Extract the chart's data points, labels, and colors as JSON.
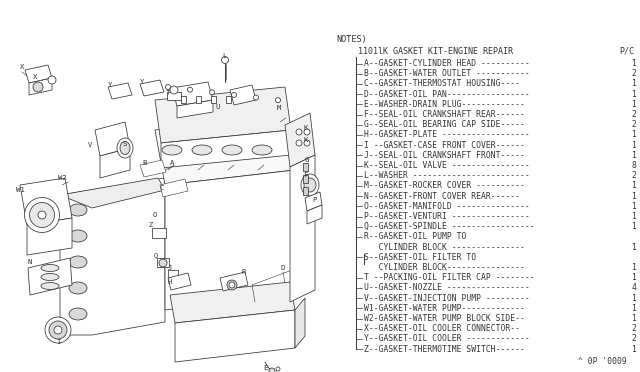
{
  "bg_color": "#ffffff",
  "notes_label": "NOTES)",
  "title_line": "1101lK GASKET KIT-ENGINE REPAIR",
  "pc_label": "P/C",
  "parts": [
    {
      "text": "A--GASKET-CYLINDER HEAD ----------",
      "qty": "1",
      "indent": false
    },
    {
      "text": "B--GASKET-WATER OUTLET -----------",
      "qty": "2",
      "indent": false
    },
    {
      "text": "C--GASKET-THERMOSTAT HOUSING----",
      "qty": "1",
      "indent": false
    },
    {
      "text": "D--GASKET-OIL PAN-----------------",
      "qty": "1",
      "indent": false
    },
    {
      "text": "E--WASHER-DRAIN PLUG-------------",
      "qty": "1",
      "indent": false
    },
    {
      "text": "F--SEAL-OIL CRANKSHAFT REAR------",
      "qty": "2",
      "indent": false
    },
    {
      "text": "G--SEAL-OIL BEARING CAP SIDE-----",
      "qty": "2",
      "indent": false
    },
    {
      "text": "H--GASKET-PLATE ------------------",
      "qty": "1",
      "indent": false
    },
    {
      "text": "I --GASKET-CASE FRONT COVER------",
      "qty": "1",
      "indent": false
    },
    {
      "text": "J--SEAL-OIL CRANKSHAFT FRONT-----",
      "qty": "1",
      "indent": false
    },
    {
      "text": "K--SEAL-OIL VALVE ----------------",
      "qty": "8",
      "indent": false
    },
    {
      "text": "L--WASHER ------------------------",
      "qty": "2",
      "indent": false
    },
    {
      "text": "M--GASKET-ROCKER COVER ----------",
      "qty": "1",
      "indent": false
    },
    {
      "text": "N--GASKET-FRONT COVER REAR------",
      "qty": "1",
      "indent": false
    },
    {
      "text": "O--GASKET-MANIFOLD ---------------",
      "qty": "1",
      "indent": false
    },
    {
      "text": "P--GASKET-VENTURI ----------------",
      "qty": "1",
      "indent": false
    },
    {
      "text": "Q--GASKET-SPINDLE -----------------",
      "qty": "1",
      "indent": false
    },
    {
      "text": "R--GASKET-OIL PUMP TO",
      "qty": "",
      "indent": false
    },
    {
      "text": "   CYLINDER BLOCK ---------------",
      "qty": "1",
      "indent": true
    },
    {
      "text": "S--GASKET-OIL FILTER TO",
      "qty": "",
      "indent": false
    },
    {
      "text": "   CYLINDER BLOCK----------------",
      "qty": "1",
      "indent": true
    },
    {
      "text": "T --PACKING-OIL FILTER CAP --------",
      "qty": "1",
      "indent": false
    },
    {
      "text": "U--GASKET-NOZZLE -----------------",
      "qty": "4",
      "indent": false
    },
    {
      "text": "V--GASKET-INJECTION PUMP ---------",
      "qty": "1",
      "indent": false
    },
    {
      "text": "W1-GASKET-WATER PUMP-------------",
      "qty": "1",
      "indent": false
    },
    {
      "text": "W2-GASKET-WATER PUMP BLOCK SIDE--",
      "qty": "1",
      "indent": false
    },
    {
      "text": "X--GASKET-OIL COOLER CONNECTOR--",
      "qty": "2",
      "indent": false
    },
    {
      "text": "Y--GASKET-OIL COOLER -------------",
      "qty": "2",
      "indent": false
    },
    {
      "text": "Z--GASKET-THERMOTIME SWITCH------",
      "qty": "1",
      "indent": false
    }
  ],
  "footer": "^ 0P '0009",
  "lc": "#333333",
  "fs": 5.8,
  "lh": 10.2
}
